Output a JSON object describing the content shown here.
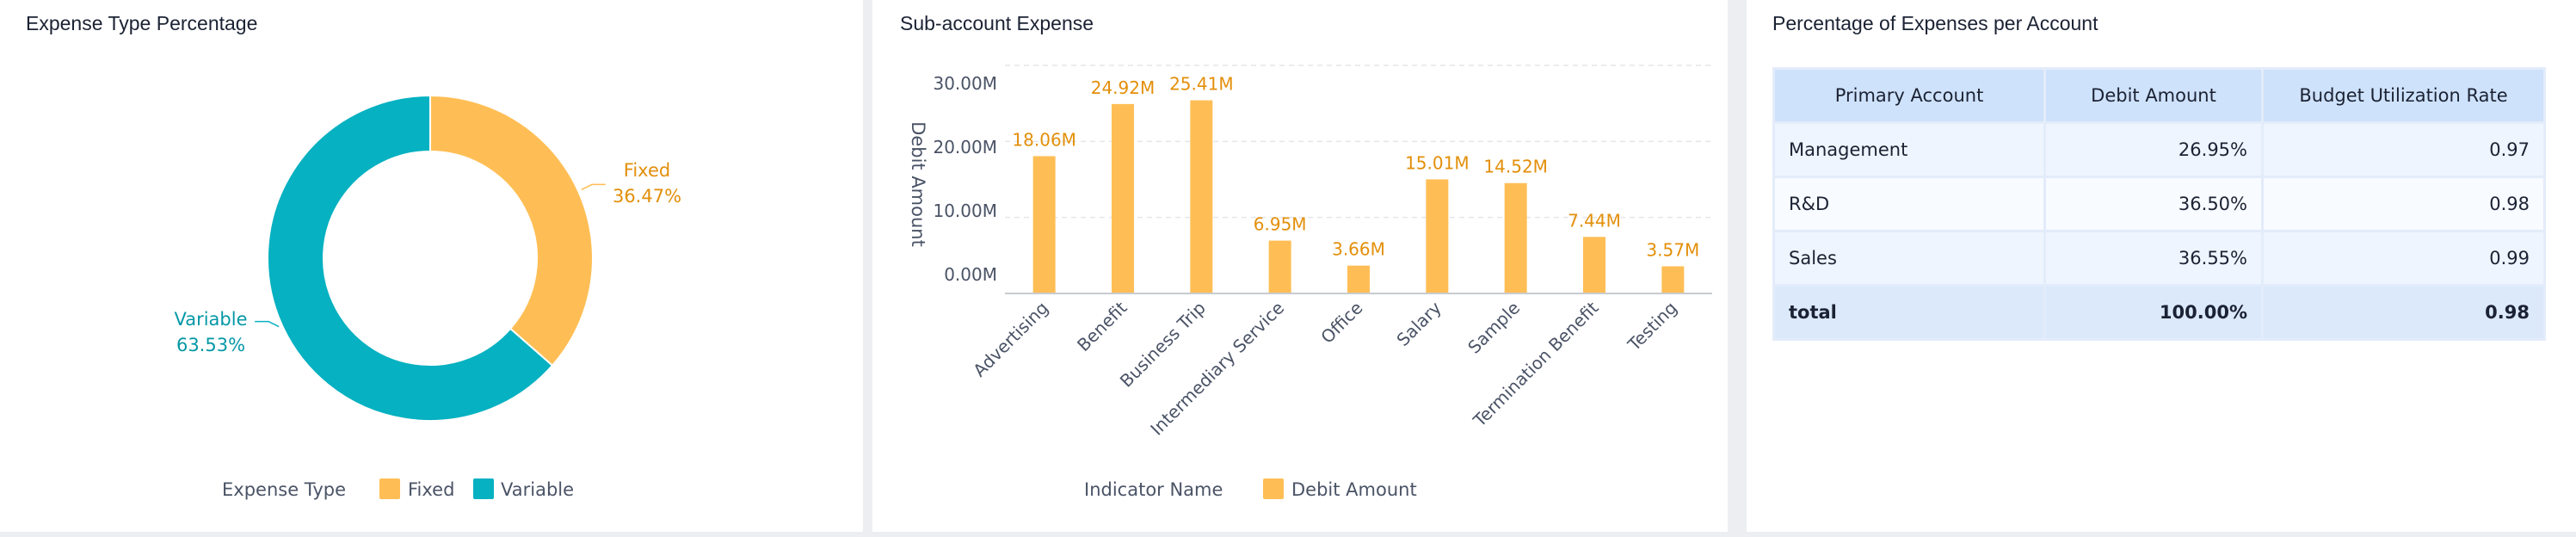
{
  "panels": {
    "donut_title": "Expense Type Percentage",
    "bar_title": "Sub-account Expense",
    "table_title": "Percentage of Expenses per Account"
  },
  "chart_data": [
    {
      "type": "pie",
      "title": "Expense Type Percentage",
      "legend_title": "Expense Type",
      "legend_position": "bottom",
      "categories": [
        "Fixed",
        "Variable"
      ],
      "values": [
        36.47,
        63.53
      ],
      "labels": [
        "36.47%",
        "63.53%"
      ],
      "colors": [
        "#FFBE55",
        "#06B1C1"
      ],
      "label_colors": [
        "#E38F0A",
        "#0598A6"
      ]
    },
    {
      "type": "bar",
      "title": "Sub-account Expense",
      "ylabel": "Debit Amount",
      "xlabel": "",
      "legend_title": "Indicator Name",
      "legend_position": "bottom",
      "ylim": [
        0,
        30000000
      ],
      "yticks": [
        "0.00M",
        "10.00M",
        "20.00M",
        "30.00M"
      ],
      "grid": true,
      "categories": [
        "Advertising",
        "Benefit",
        "Business Trip",
        "Intermediary Service",
        "Office",
        "Salary",
        "Sample",
        "Termination Benefit",
        "Testing"
      ],
      "series": [
        {
          "name": "Debit Amount",
          "values": [
            18060000,
            24920000,
            25410000,
            6950000,
            3660000,
            15010000,
            14520000,
            7440000,
            3570000
          ],
          "labels": [
            "18.06M",
            "24.92M",
            "25.41M",
            "6.95M",
            "3.66M",
            "15.01M",
            "14.52M",
            "7.44M",
            "3.57M"
          ],
          "color": "#FFBE55",
          "label_color": "#E38F0A"
        }
      ]
    }
  ],
  "table": {
    "headers": [
      "Primary Account",
      "Debit Amount",
      "Budget Utilization Rate"
    ],
    "rows": [
      [
        "Management",
        "26.95%",
        "0.97"
      ],
      [
        "R&D",
        "36.50%",
        "0.98"
      ],
      [
        "Sales",
        "36.55%",
        "0.99"
      ]
    ],
    "total": [
      "total",
      "100.00%",
      "0.98"
    ]
  }
}
